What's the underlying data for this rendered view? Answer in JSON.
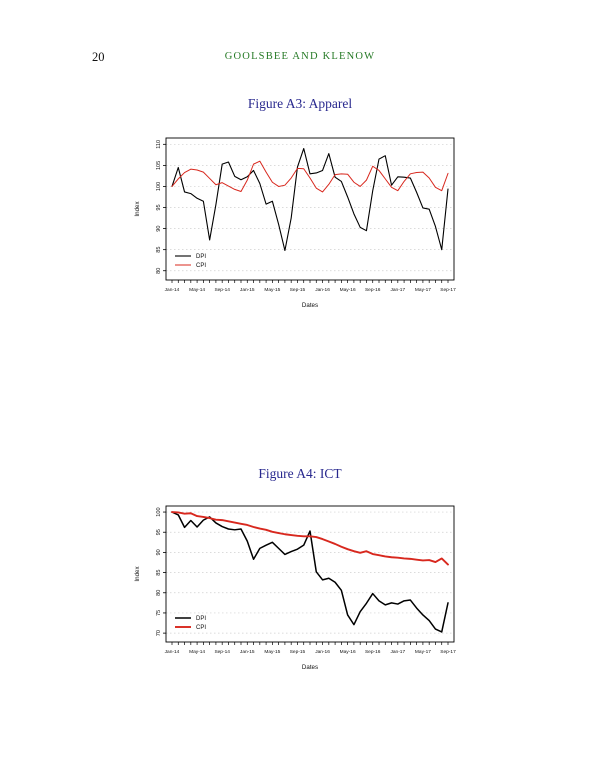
{
  "page": {
    "number": "20",
    "running_head": "GOOLSBEE AND KLENOW"
  },
  "colors": {
    "running_head_green": "#267a26",
    "figure_title_navy": "#28288e",
    "dpi_black": "#000000",
    "cpi_red": "#d8281e",
    "grid_gray": "#cfcfcf",
    "frame_black": "#000000"
  },
  "figures": [
    {
      "title": "Figure A3: Apparel",
      "chart_data": {
        "type": "line",
        "title": "Figure A3: Apparel",
        "xlabel": "Dates",
        "ylabel": "Index",
        "ylim": [
          80,
          110
        ],
        "yticks": [
          80,
          85,
          90,
          95,
          100,
          105,
          110
        ],
        "x_tick_labels": [
          "Jan-14",
          "May-14",
          "Sep-14",
          "Jan-15",
          "May-15",
          "Sep-15",
          "Jan-16",
          "May-16",
          "Sep-16",
          "Jan-17",
          "May-17",
          "Sep-17"
        ],
        "x_tick_every": 4,
        "n_points": 45,
        "grid": "horizontal-dashed",
        "legend_position": "bottom-left",
        "legend": [
          "DPI",
          "CPI"
        ],
        "series": [
          {
            "name": "DPI",
            "color": "#000000",
            "width": 1.1,
            "values": [
              100,
              104.5,
              98.7,
              98.3,
              97.2,
              96.5,
              87.3,
              95.7,
              105.3,
              105.8,
              102.4,
              101.6,
              102.3,
              103.8,
              100.7,
              95.8,
              96.5,
              91,
              84.8,
              92.5,
              104.6,
              109,
              103,
              103.2,
              103.8,
              107.8,
              102.2,
              101.2,
              97.5,
              93.5,
              90.3,
              89.5,
              99,
              106.5,
              107.3,
              100.3,
              102.3,
              102.2,
              102,
              98.6,
              94.9,
              94.6,
              90.5,
              85,
              99.4
            ]
          },
          {
            "name": "CPI",
            "color": "#d8281e",
            "width": 1.0,
            "values": [
              100,
              101.8,
              103.3,
              104.1,
              103.9,
              103.4,
              101.9,
              100.4,
              100.9,
              100.1,
              99.3,
              98.8,
              101.5,
              105.3,
              106,
              103.4,
              101,
              100,
              100.3,
              102,
              104.3,
              104.2,
              102,
              99.6,
              98.7,
              100.5,
              102.8,
              103,
              102.9,
              101,
              100,
              101.5,
              104.8,
              103.8,
              101.8,
              99.8,
              99,
              101.2,
              103,
              103.3,
              103.4,
              102,
              99.8,
              99,
              103.1
            ]
          }
        ]
      }
    },
    {
      "title": "Figure A4: ICT",
      "chart_data": {
        "type": "line",
        "title": "Figure A4: ICT",
        "xlabel": "Dates",
        "ylabel": "Index",
        "ylim": [
          70,
          100
        ],
        "yticks": [
          70,
          75,
          80,
          85,
          90,
          95,
          100
        ],
        "x_tick_labels": [
          "Jan-14",
          "May-14",
          "Sep-14",
          "Jan-15",
          "May-15",
          "Sep-15",
          "Jan-16",
          "May-16",
          "Sep-16",
          "Jan-17",
          "May-17",
          "Sep-17"
        ],
        "x_tick_every": 4,
        "n_points": 45,
        "grid": "horizontal-dashed",
        "legend_position": "bottom-left",
        "legend": [
          "DPI",
          "CPI"
        ],
        "series": [
          {
            "name": "DPI",
            "color": "#000000",
            "width": 1.5,
            "values": [
              100,
              99.3,
              96.2,
              97.9,
              96.3,
              98,
              98.8,
              97.3,
              96.4,
              95.8,
              95.6,
              95.8,
              92.8,
              88.3,
              91,
              91.8,
              92.5,
              91,
              89.5,
              90.2,
              90.8,
              91.8,
              95.3,
              85.2,
              83.2,
              83.6,
              82.6,
              80.6,
              74.5,
              72.1,
              75.3,
              77.4,
              79.8,
              78,
              77,
              77.5,
              77.2,
              78,
              78.2,
              76.2,
              74.5,
              73.1,
              71,
              70.3,
              77.5
            ]
          },
          {
            "name": "CPI",
            "color": "#d8281e",
            "width": 1.9,
            "values": [
              100,
              99.9,
              99.6,
              99.7,
              99,
              98.8,
              98.5,
              98.1,
              98,
              97.7,
              97.4,
              97.1,
              96.8,
              96.3,
              95.9,
              95.6,
              95.1,
              94.8,
              94.5,
              94.3,
              94.1,
              94,
              94,
              93.8,
              93.3,
              92.7,
              92.1,
              91.4,
              90.8,
              90.3,
              89.9,
              90.3,
              89.6,
              89.3,
              89,
              88.8,
              88.7,
              88.5,
              88.4,
              88.2,
              88,
              88.1,
              87.6,
              88.5,
              87
            ]
          }
        ]
      }
    }
  ]
}
